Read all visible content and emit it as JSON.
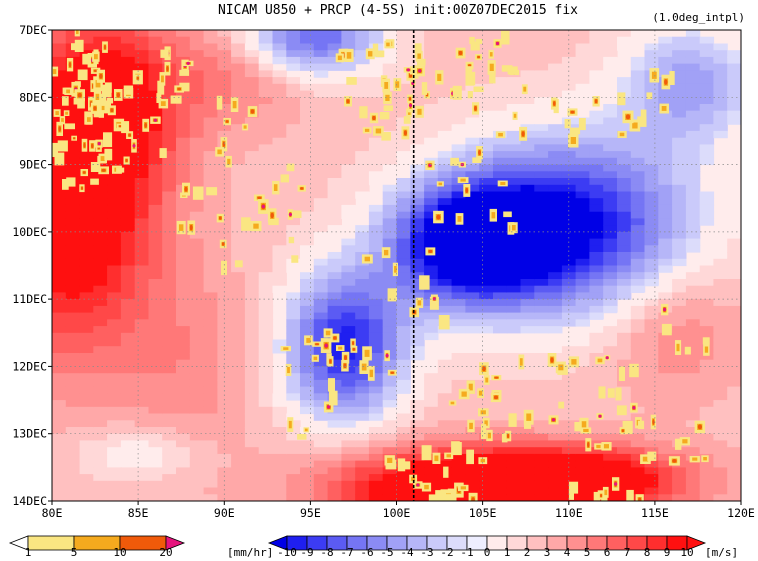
{
  "chart_data": {
    "type": "heatmap",
    "title": "NICAM   U850 + PRCP (4-5S) init:00Z07DEC2015 fix",
    "note": "(1.0deg_intpl)",
    "x_ticks": [
      "80E",
      "85E",
      "90E",
      "95E",
      "100E",
      "105E",
      "110E",
      "115E",
      "120E"
    ],
    "x_range": [
      80,
      120
    ],
    "y_ticks": [
      "7DEC",
      "8DEC",
      "9DEC",
      "10DEC",
      "11DEC",
      "12DEC",
      "13DEC",
      "14DEC"
    ],
    "y_range": [
      "2015-12-07",
      "2015-12-14"
    ],
    "grid": true,
    "marker_line": {
      "x": 101,
      "style": "dashed"
    },
    "u850_field": {
      "units": "[m/s]",
      "levels": [
        -10,
        -9,
        -8,
        -7,
        -6,
        -5,
        -4,
        -3,
        -2,
        -1,
        0,
        1,
        2,
        3,
        4,
        5,
        6,
        7,
        8,
        9,
        10
      ],
      "colors": {
        "neg10": "#0000e6",
        "neg9": "#1f1ff0",
        "neg8": "#3c3cf3",
        "neg7": "#5b5bf3",
        "neg6": "#7575f4",
        "neg5": "#8b8bf4",
        "neg4": "#a1a1f6",
        "neg3": "#b6b6f8",
        "neg2": "#cacafa",
        "neg1": "#dcdcfb",
        "zero": "#eeeeff",
        "pos1": "#ffecec",
        "pos2": "#ffd8d8",
        "pos3": "#ffc0c0",
        "pos4": "#ffa8a8",
        "pos5": "#ff9090",
        "pos6": "#ff7878",
        "pos7": "#ff6060",
        "pos8": "#ff4848",
        "pos9": "#ff2e2e",
        "pos10": "#ff1010"
      }
    },
    "prcp_field": {
      "units": "[mm/hr]",
      "levels": [
        1,
        5,
        10,
        20
      ],
      "colors": {
        "c1": "#fae682",
        "c5": "#f5aa1e",
        "c10": "#f05a0a",
        "c20": "#e6147d"
      }
    }
  }
}
